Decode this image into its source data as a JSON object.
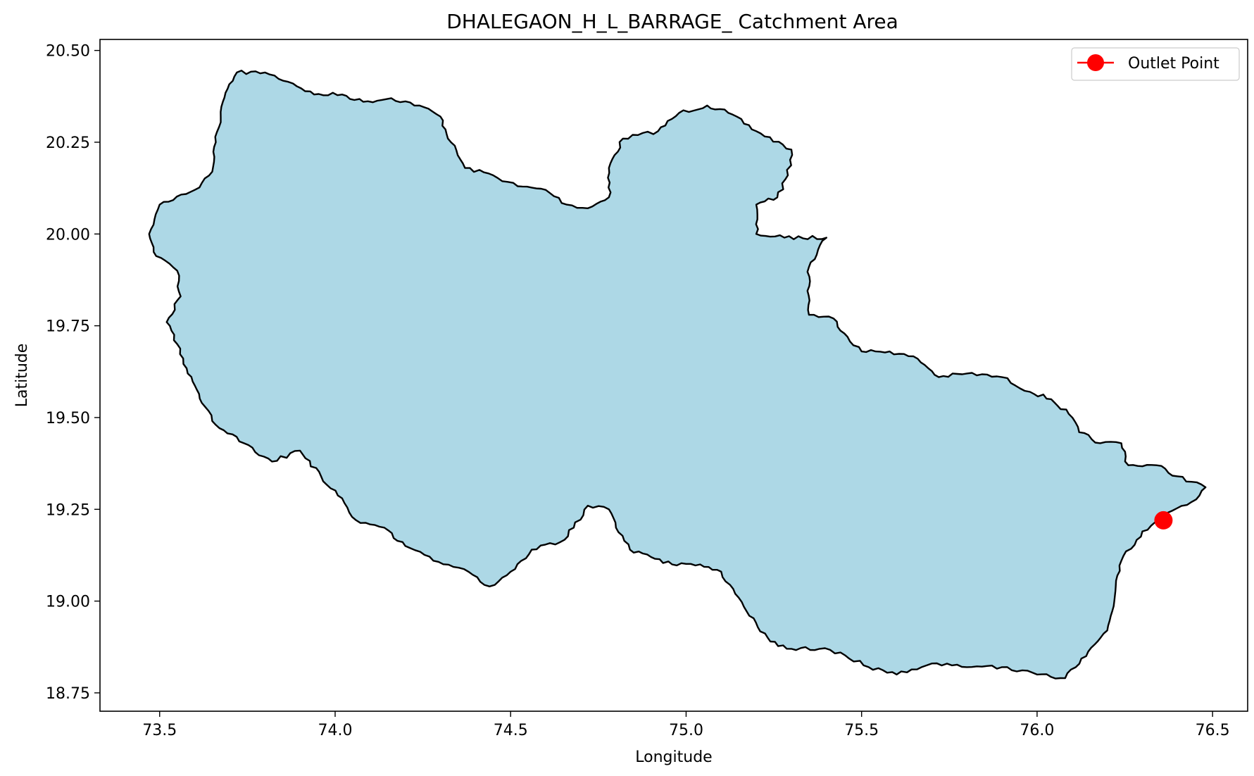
{
  "chart_data": {
    "type": "map",
    "title": "DHALEGAON_H_L_BARRAGE_ Catchment Area",
    "xlabel": "Longitude",
    "ylabel": "Latitude",
    "xlim": [
      73.33,
      76.6
    ],
    "ylim": [
      18.7,
      20.53
    ],
    "xticks": [
      73.5,
      74.0,
      74.5,
      75.0,
      75.5,
      76.0,
      76.5
    ],
    "xtick_labels": [
      "73.5",
      "74.0",
      "74.5",
      "75.0",
      "75.5",
      "76.0",
      "76.5"
    ],
    "yticks": [
      18.75,
      19.0,
      19.25,
      19.5,
      19.75,
      20.0,
      20.25,
      20.5
    ],
    "ytick_labels": [
      "18.75",
      "19.00",
      "19.25",
      "19.50",
      "19.75",
      "20.00",
      "20.25",
      "20.50"
    ],
    "grid": false,
    "legend": {
      "position": "top-right",
      "entries": [
        {
          "name": "Outlet Point",
          "color": "#ff0000",
          "marker": "circle-line"
        }
      ]
    },
    "catchment": {
      "fill": "#add8e6",
      "stroke": "#000000",
      "boundary": [
        [
          73.72,
          20.44
        ],
        [
          73.8,
          20.44
        ],
        [
          73.88,
          20.41
        ],
        [
          73.94,
          20.38
        ],
        [
          74.02,
          20.38
        ],
        [
          74.08,
          20.36
        ],
        [
          74.16,
          20.37
        ],
        [
          74.24,
          20.35
        ],
        [
          74.3,
          20.32
        ],
        [
          74.33,
          20.25
        ],
        [
          74.37,
          20.18
        ],
        [
          74.45,
          20.16
        ],
        [
          74.52,
          20.13
        ],
        [
          74.6,
          20.12
        ],
        [
          74.66,
          20.08
        ],
        [
          74.72,
          20.07
        ],
        [
          74.78,
          20.1
        ],
        [
          74.78,
          20.18
        ],
        [
          74.82,
          20.26
        ],
        [
          74.92,
          20.28
        ],
        [
          74.98,
          20.33
        ],
        [
          75.06,
          20.35
        ],
        [
          75.12,
          20.33
        ],
        [
          75.2,
          20.28
        ],
        [
          75.3,
          20.23
        ],
        [
          75.29,
          20.16
        ],
        [
          75.26,
          20.1
        ],
        [
          75.2,
          20.08
        ],
        [
          75.2,
          20.0
        ],
        [
          75.28,
          19.99
        ],
        [
          75.4,
          19.99
        ],
        [
          75.35,
          19.91
        ],
        [
          75.35,
          19.78
        ],
        [
          75.42,
          19.77
        ],
        [
          75.46,
          19.72
        ],
        [
          75.5,
          19.68
        ],
        [
          75.58,
          19.68
        ],
        [
          75.66,
          19.66
        ],
        [
          75.72,
          19.61
        ],
        [
          75.8,
          19.62
        ],
        [
          75.9,
          19.61
        ],
        [
          75.98,
          19.57
        ],
        [
          76.04,
          19.55
        ],
        [
          76.09,
          19.51
        ],
        [
          76.12,
          19.46
        ],
        [
          76.18,
          19.43
        ],
        [
          76.24,
          19.43
        ],
        [
          76.26,
          19.37
        ],
        [
          76.34,
          19.37
        ],
        [
          76.4,
          19.34
        ],
        [
          76.48,
          19.31
        ],
        [
          76.44,
          19.27
        ],
        [
          76.37,
          19.24
        ],
        [
          76.3,
          19.19
        ],
        [
          76.24,
          19.11
        ],
        [
          76.22,
          19.0
        ],
        [
          76.2,
          18.92
        ],
        [
          76.14,
          18.85
        ],
        [
          76.08,
          18.79
        ],
        [
          76.0,
          18.8
        ],
        [
          75.9,
          18.82
        ],
        [
          75.8,
          18.82
        ],
        [
          75.7,
          18.83
        ],
        [
          75.6,
          18.8
        ],
        [
          75.52,
          18.82
        ],
        [
          75.44,
          18.86
        ],
        [
          75.38,
          18.87
        ],
        [
          75.3,
          18.87
        ],
        [
          75.24,
          18.89
        ],
        [
          75.18,
          18.96
        ],
        [
          75.14,
          19.02
        ],
        [
          75.1,
          19.08
        ],
        [
          75.04,
          19.1
        ],
        [
          74.96,
          19.1
        ],
        [
          74.9,
          19.12
        ],
        [
          74.84,
          19.14
        ],
        [
          74.8,
          19.2
        ],
        [
          74.78,
          19.25
        ],
        [
          74.72,
          19.26
        ],
        [
          74.68,
          19.2
        ],
        [
          74.64,
          19.16
        ],
        [
          74.56,
          19.14
        ],
        [
          74.5,
          19.08
        ],
        [
          74.44,
          19.04
        ],
        [
          74.38,
          19.08
        ],
        [
          74.28,
          19.11
        ],
        [
          74.2,
          19.15
        ],
        [
          74.14,
          19.2
        ],
        [
          74.06,
          19.22
        ],
        [
          74.02,
          19.28
        ],
        [
          73.96,
          19.34
        ],
        [
          73.9,
          19.41
        ],
        [
          73.82,
          19.38
        ],
        [
          73.74,
          19.43
        ],
        [
          73.66,
          19.48
        ],
        [
          73.62,
          19.54
        ],
        [
          73.58,
          19.62
        ],
        [
          73.55,
          19.7
        ],
        [
          73.52,
          19.76
        ],
        [
          73.56,
          19.83
        ],
        [
          73.55,
          19.9
        ],
        [
          73.49,
          19.94
        ],
        [
          73.47,
          20.0
        ],
        [
          73.5,
          20.08
        ],
        [
          73.6,
          20.12
        ],
        [
          73.65,
          20.17
        ],
        [
          73.66,
          20.25
        ],
        [
          73.68,
          20.36
        ]
      ]
    },
    "outlet_point": {
      "name": "Outlet Point",
      "lon": 76.36,
      "lat": 19.22,
      "color": "#ff0000"
    }
  }
}
